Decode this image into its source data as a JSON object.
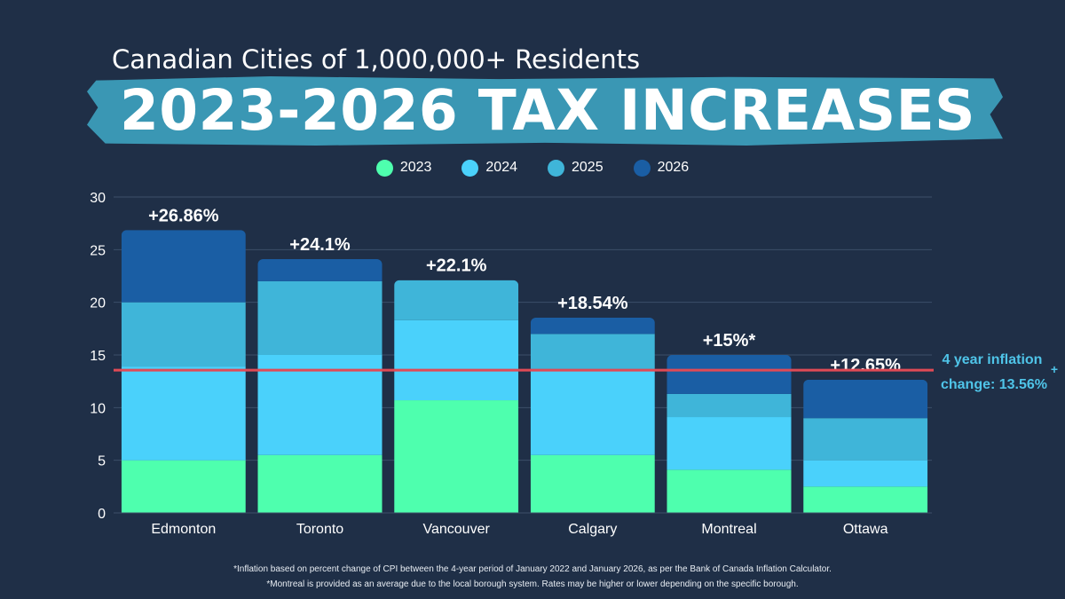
{
  "header": {
    "subtitle": "Canadian Cities of 1,000,000+ Residents",
    "title": "2023-2026 TAX INCREASES",
    "brush_color": "#3a97b4"
  },
  "chart_data": {
    "type": "bar",
    "stacked": true,
    "categories": [
      "Edmonton",
      "Toronto",
      "Vancouver",
      "Calgary",
      "Montreal",
      "Ottawa"
    ],
    "series": [
      {
        "name": "2023",
        "color": "#4effae",
        "values": [
          5.0,
          5.5,
          10.7,
          5.5,
          4.1,
          2.5
        ]
      },
      {
        "name": "2024",
        "color": "#4ad1fb",
        "values": [
          8.9,
          9.5,
          7.6,
          8.0,
          5.0,
          2.5
        ]
      },
      {
        "name": "2025",
        "color": "#3fb5d9",
        "values": [
          6.1,
          7.0,
          3.8,
          3.5,
          2.2,
          4.0
        ]
      },
      {
        "name": "2026",
        "color": "#1a5ea4",
        "values": [
          6.86,
          2.1,
          0,
          1.54,
          3.7,
          3.65
        ]
      }
    ],
    "totals_labels": [
      "+26.86%",
      "+24.1%",
      "+22.1%",
      "+18.54%",
      "+15%*",
      "+12.65%"
    ],
    "ylim": [
      0,
      30
    ],
    "yticks": [
      0,
      5,
      10,
      15,
      20,
      25,
      30
    ],
    "grid": true,
    "legend_position": "top-center",
    "reference_line": {
      "value": 13.56,
      "color": "#e04a55",
      "label_line1": "4 year inflation",
      "label_line2": "change: 13.56%",
      "label_mark": "+",
      "label_color": "#4fc4e8"
    }
  },
  "footnotes": [
    "*Inflation based on percent change of CPI between the 4-year period of January 2022 and January 2026, as per the Bank of Canada Inflation Calculator.",
    "*Montreal is provided as an average due to the local borough system. Rates may be higher or lower depending on the specific borough."
  ]
}
